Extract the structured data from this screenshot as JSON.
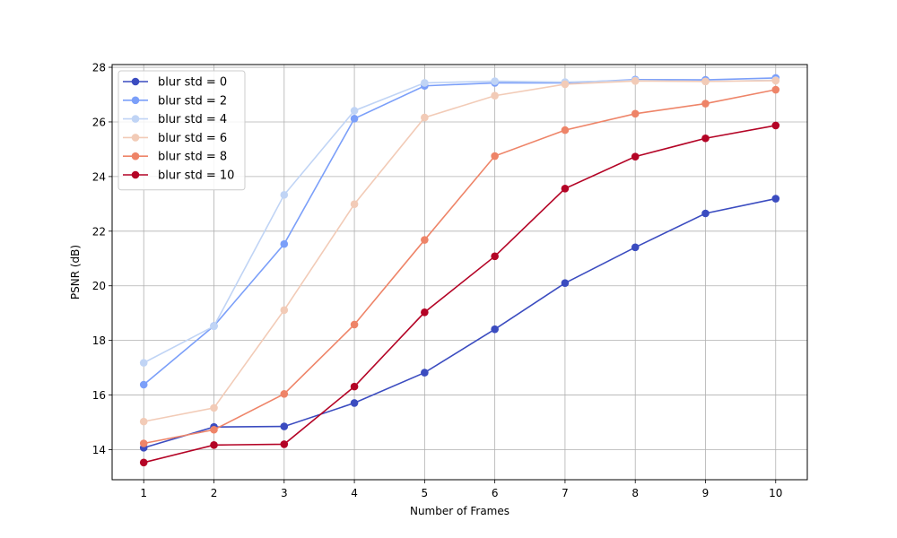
{
  "chart_data": {
    "type": "line",
    "title": "",
    "xlabel": "Number of Frames",
    "ylabel": "PSNR (dB)",
    "x": [
      1,
      2,
      3,
      4,
      5,
      6,
      7,
      8,
      9,
      10
    ],
    "xlim": [
      0.55,
      10.45
    ],
    "ylim": [
      12.9,
      28.1
    ],
    "x_ticks": [
      1,
      2,
      3,
      4,
      5,
      6,
      7,
      8,
      9,
      10
    ],
    "y_ticks": [
      14,
      16,
      18,
      20,
      22,
      24,
      26,
      28
    ],
    "grid": true,
    "legend_placement": "top-left",
    "series": [
      {
        "name": "blur std = 0",
        "color": "#3b4cc0",
        "values": [
          14.07,
          14.83,
          14.85,
          15.71,
          16.82,
          18.41,
          20.1,
          21.41,
          22.65,
          23.19
        ]
      },
      {
        "name": "blur std = 2",
        "color": "#7b9ff9",
        "values": [
          16.38,
          18.53,
          21.53,
          26.12,
          27.32,
          27.43,
          27.43,
          27.55,
          27.54,
          27.61
        ]
      },
      {
        "name": "blur std = 4",
        "color": "#c0d4f5",
        "values": [
          17.18,
          18.52,
          23.33,
          26.41,
          27.43,
          27.49,
          27.46,
          27.52,
          27.48,
          27.53
        ]
      },
      {
        "name": "blur std = 6",
        "color": "#f2cbb7",
        "values": [
          15.03,
          15.53,
          19.11,
          22.99,
          26.16,
          26.96,
          27.38,
          27.5,
          27.48,
          27.51
        ]
      },
      {
        "name": "blur std = 8",
        "color": "#ee8468",
        "values": [
          14.23,
          14.73,
          16.04,
          18.58,
          21.68,
          24.75,
          25.7,
          26.3,
          26.67,
          27.18
        ]
      },
      {
        "name": "blur std = 10",
        "color": "#b40426",
        "values": [
          13.53,
          14.17,
          14.2,
          16.31,
          19.03,
          21.08,
          23.56,
          24.73,
          25.4,
          25.87
        ]
      }
    ]
  }
}
